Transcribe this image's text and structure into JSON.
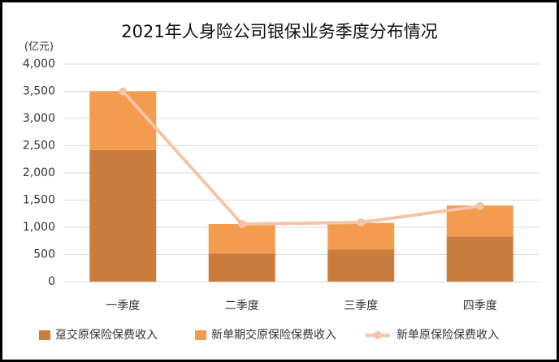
{
  "chart_data": {
    "type": "stacked-bar-line",
    "title": "2021年人身险公司银保业务季度分布情况",
    "y_unit_label": "(亿元)",
    "categories": [
      "一季度",
      "二季度",
      "三季度",
      "四季度"
    ],
    "series": [
      {
        "name": "趸交原保险保费收入",
        "type": "bar",
        "color": "#c97c3e",
        "values": [
          2420,
          520,
          590,
          830
        ]
      },
      {
        "name": "新单期交原保险保费收入",
        "type": "bar",
        "color": "#f39c4f",
        "values": [
          1080,
          540,
          490,
          570
        ]
      },
      {
        "name": "新单原保险保费收入",
        "type": "line",
        "color": "#f5c4a6",
        "values": [
          3500,
          1060,
          1090,
          1390
        ]
      }
    ],
    "ylim": [
      0,
      4000
    ],
    "yticks": [
      0,
      500,
      {
        "value": 1000,
        "label": "1,000"
      },
      {
        "value": 1500,
        "label": "1,500"
      },
      {
        "value": 2000,
        "label": "2,000"
      },
      {
        "value": 2500,
        "label": "2,500"
      },
      {
        "value": 3000,
        "label": "3,000"
      },
      {
        "value": 3500,
        "label": "3,500"
      },
      {
        "value": 4000,
        "label": "4,000"
      }
    ],
    "grid": true
  }
}
